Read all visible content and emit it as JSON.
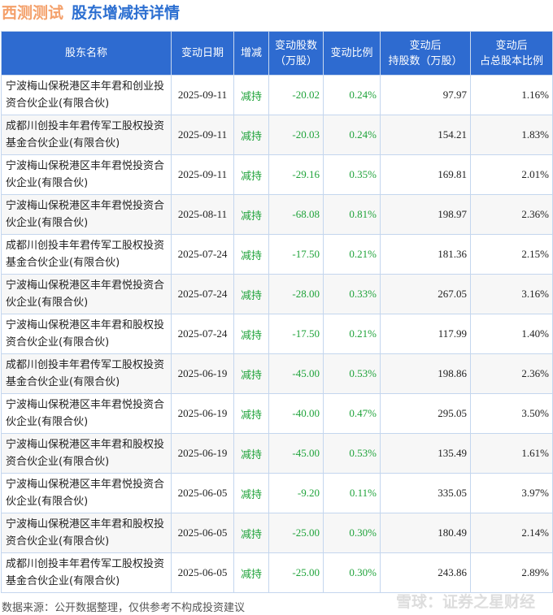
{
  "header": {
    "brand": "西测测试",
    "title": "股东增减持详情"
  },
  "columns": [
    "股东名称",
    "变动日期",
    "增减",
    "变动股数\n（万股）",
    "变动比例",
    "变动后\n持股数（万股）",
    "变动后\n占总股本比例"
  ],
  "rows": [
    [
      "宁波梅山保税港区丰年君和创业投资合伙企业(有限合伙)",
      "2025-09-11",
      "减持",
      "-20.02",
      "0.24%",
      "97.97",
      "1.16%"
    ],
    [
      "成都川创投丰年君传军工股权投资基金合伙企业(有限合伙)",
      "2025-09-11",
      "减持",
      "-20.03",
      "0.24%",
      "154.21",
      "1.83%"
    ],
    [
      "宁波梅山保税港区丰年君悦投资合伙企业(有限合伙)",
      "2025-09-11",
      "减持",
      "-29.16",
      "0.35%",
      "169.81",
      "2.01%"
    ],
    [
      "宁波梅山保税港区丰年君悦投资合伙企业(有限合伙)",
      "2025-08-11",
      "减持",
      "-68.08",
      "0.81%",
      "198.97",
      "2.36%"
    ],
    [
      "成都川创投丰年君传军工股权投资基金合伙企业(有限合伙)",
      "2025-07-24",
      "减持",
      "-17.50",
      "0.21%",
      "181.36",
      "2.15%"
    ],
    [
      "宁波梅山保税港区丰年君悦投资合伙企业(有限合伙)",
      "2025-07-24",
      "减持",
      "-28.00",
      "0.33%",
      "267.05",
      "3.16%"
    ],
    [
      "宁波梅山保税港区丰年君和股权投资合伙企业(有限合伙)",
      "2025-07-24",
      "减持",
      "-17.50",
      "0.21%",
      "117.99",
      "1.40%"
    ],
    [
      "成都川创投丰年君传军工股权投资基金合伙企业(有限合伙)",
      "2025-06-19",
      "减持",
      "-45.00",
      "0.53%",
      "198.86",
      "2.36%"
    ],
    [
      "宁波梅山保税港区丰年君悦投资合伙企业(有限合伙)",
      "2025-06-19",
      "减持",
      "-40.00",
      "0.47%",
      "295.05",
      "3.50%"
    ],
    [
      "宁波梅山保税港区丰年君和股权投资合伙企业(有限合伙)",
      "2025-06-19",
      "减持",
      "-45.00",
      "0.53%",
      "135.49",
      "1.61%"
    ],
    [
      "宁波梅山保税港区丰年君悦投资合伙企业(有限合伙)",
      "2025-06-05",
      "减持",
      "-9.20",
      "0.11%",
      "335.05",
      "3.97%"
    ],
    [
      "宁波梅山保税港区丰年君和股权投资合伙企业(有限合伙)",
      "2025-06-05",
      "减持",
      "-25.00",
      "0.30%",
      "180.49",
      "2.14%"
    ],
    [
      "成都川创投丰年君传军工股权投资基金合伙企业(有限合伙)",
      "2025-06-05",
      "减持",
      "-25.00",
      "0.30%",
      "243.86",
      "2.89%"
    ]
  ],
  "footer": {
    "source": "数据来源：公开数据整理，仅供参考不构成投资建议",
    "watermark": "雪球：证券之星财经"
  },
  "colors": {
    "header_bg": "#2e6bd0",
    "decrease": "#1fa33a",
    "brand": "#f4a06a",
    "title": "#2c6fd1"
  }
}
